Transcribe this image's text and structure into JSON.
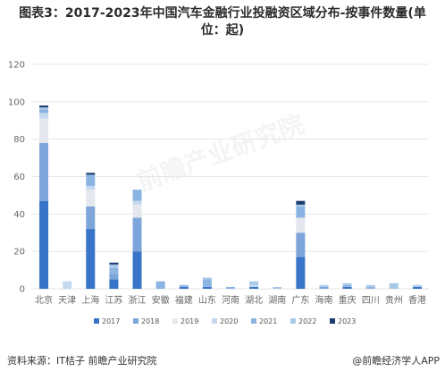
{
  "title": "图表3：2017-2023年中国汽车金融行业投融资区域分布-按事件数量(单位：起)",
  "source": "资料来源：IT桔子 前瞻产业研究院",
  "brand": "@前瞻经济学人APP",
  "watermark": "前瞻产业研究院",
  "colors": {
    "2017": "#3875c8",
    "2018": "#7ea5da",
    "2019": "#e4e8ee",
    "2020": "#c5d9ee",
    "2021": "#8bb4e2",
    "2022": "#a8c8e8",
    "2023": "#1a3c6e",
    "grid": "#e6e6e6"
  },
  "chart_data": {
    "type": "bar",
    "stacked": true,
    "title": "图表3：2017-2023年中国汽车金融行业投融资区域分布-按事件数量(单位：起)",
    "xlabel": "",
    "ylabel": "",
    "ylim": [
      0,
      120
    ],
    "yticks": [
      0,
      20,
      40,
      60,
      80,
      100,
      120
    ],
    "grid": true,
    "legend_position": "bottom",
    "categories": [
      "北京",
      "天津",
      "上海",
      "江苏",
      "浙江",
      "安徽",
      "福建",
      "山东",
      "河南",
      "湖北",
      "湖南",
      "广东",
      "海南",
      "重庆",
      "四川",
      "贵州",
      "香港"
    ],
    "series": [
      {
        "name": "2017",
        "values": [
          47,
          0,
          32,
          5,
          20,
          0,
          1,
          1,
          0,
          1,
          0,
          17,
          0,
          1,
          0,
          0,
          1
        ]
      },
      {
        "name": "2018",
        "values": [
          31,
          0,
          12,
          3,
          18,
          0,
          0,
          0,
          0,
          0,
          0,
          13,
          1,
          0,
          0,
          0,
          0
        ]
      },
      {
        "name": "2019",
        "values": [
          13,
          0,
          9,
          0,
          7,
          0,
          0,
          0,
          0,
          0,
          0,
          8,
          0,
          0,
          0,
          0,
          0
        ]
      },
      {
        "name": "2020",
        "values": [
          3,
          4,
          2,
          0,
          2,
          0,
          0,
          0,
          0,
          1,
          0,
          0,
          0,
          0,
          0,
          0,
          0
        ]
      },
      {
        "name": "2021",
        "values": [
          2,
          0,
          6,
          3,
          6,
          4,
          1,
          4,
          1,
          0,
          0,
          6,
          0,
          1,
          1,
          0,
          0
        ]
      },
      {
        "name": "2022",
        "values": [
          1,
          0,
          0,
          2,
          0,
          0,
          0,
          1,
          0,
          2,
          1,
          1,
          1,
          1,
          1,
          3,
          1
        ]
      },
      {
        "name": "2023",
        "values": [
          1,
          0,
          1,
          1,
          0,
          0,
          0,
          0,
          0,
          0,
          0,
          2,
          0,
          0,
          0,
          0,
          0
        ]
      }
    ]
  }
}
